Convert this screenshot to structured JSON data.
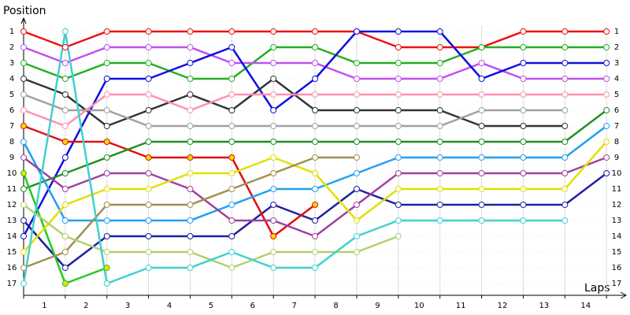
{
  "chart_data": {
    "type": "line",
    "y_label": "Position",
    "x_label": "Laps",
    "x": [
      0,
      1,
      2,
      3,
      4,
      5,
      6,
      7,
      8,
      9,
      10,
      11,
      12,
      13,
      14
    ],
    "xlim": [
      0,
      14.5
    ],
    "xticks": [
      {
        "value": 0.5,
        "label": "1"
      },
      {
        "value": 1.5,
        "label": "2"
      },
      {
        "value": 2.5,
        "label": "3"
      },
      {
        "value": 3.5,
        "label": "4"
      },
      {
        "value": 4.5,
        "label": "5"
      },
      {
        "value": 5.5,
        "label": "6"
      },
      {
        "value": 6.5,
        "label": "7"
      },
      {
        "value": 7.5,
        "label": "8"
      },
      {
        "value": 8.5,
        "label": "9"
      },
      {
        "value": 9.5,
        "label": "10"
      },
      {
        "value": 10.5,
        "label": "11"
      },
      {
        "value": 11.5,
        "label": "12"
      },
      {
        "value": 12.5,
        "label": "13"
      },
      {
        "value": 13.5,
        "label": "14"
      }
    ],
    "ylim": [
      17.75,
      0.25
    ],
    "yticks": [
      1,
      2,
      3,
      4,
      5,
      6,
      7,
      8,
      9,
      10,
      11,
      12,
      13,
      14,
      15,
      16,
      17
    ],
    "grid": true,
    "series": [
      {
        "color": "#ee1111",
        "marker_fill": "#ffffff",
        "values": [
          1,
          2,
          1,
          1,
          1,
          1,
          1,
          1,
          1,
          2,
          2,
          2,
          1,
          1,
          1
        ]
      },
      {
        "color": "#22b022",
        "marker_fill": "#ffffff",
        "values": [
          3,
          4,
          3,
          3,
          4,
          4,
          2,
          2,
          3,
          3,
          3,
          2,
          2,
          2,
          2
        ]
      },
      {
        "color": "#c050f0",
        "marker_fill": "#ffffff",
        "values": [
          2,
          3,
          2,
          2,
          2,
          3,
          3,
          3,
          4,
          4,
          4,
          3,
          4,
          4,
          4
        ]
      },
      {
        "color": "#1010e0",
        "marker_fill": "#ffffff",
        "values": [
          14,
          9,
          4,
          4,
          3,
          2,
          6,
          4,
          1,
          1,
          1,
          4,
          3,
          3,
          3
        ]
      },
      {
        "color": "#2020a0",
        "marker_fill": "#ffffff",
        "values": [
          13,
          16,
          14,
          14,
          14,
          14,
          12,
          13,
          11,
          12,
          12,
          12,
          12,
          12,
          10
        ]
      },
      {
        "color": "#333333",
        "marker_fill": "#ffffff",
        "values": [
          4,
          5,
          7,
          6,
          5,
          6,
          4,
          6,
          6,
          6,
          6,
          7,
          7,
          7,
          null
        ]
      },
      {
        "color": "#a0a0a0",
        "marker_fill": "#ffffff",
        "values": [
          5,
          6,
          6,
          7,
          7,
          7,
          7,
          7,
          7,
          7,
          7,
          6,
          6,
          6,
          null
        ]
      },
      {
        "color": "#ff90b0",
        "marker_fill": "#ffffff",
        "values": [
          6,
          7,
          5,
          5,
          6,
          5,
          5,
          5,
          5,
          5,
          5,
          5,
          5,
          5,
          5
        ]
      },
      {
        "color": "#e01010",
        "marker_fill": "#f0e000",
        "values": [
          7,
          8,
          8,
          9,
          9,
          9,
          14,
          12,
          null,
          null,
          null,
          null,
          null,
          null,
          null
        ]
      },
      {
        "color": "#209020",
        "marker_fill": "#ffffff",
        "values": [
          11,
          10,
          9,
          8,
          8,
          8,
          8,
          8,
          8,
          8,
          8,
          8,
          8,
          8,
          6
        ]
      },
      {
        "color": "#20a0f0",
        "marker_fill": "#ffffff",
        "values": [
          8,
          13,
          13,
          13,
          13,
          12,
          11,
          11,
          10,
          9,
          9,
          9,
          9,
          9,
          7
        ]
      },
      {
        "color": "#a040a0",
        "marker_fill": "#ffffff",
        "values": [
          9,
          11,
          10,
          10,
          11,
          13,
          13,
          14,
          12,
          10,
          10,
          10,
          10,
          10,
          9
        ]
      },
      {
        "color": "#20cc20",
        "marker_fill": "#f0e000",
        "values": [
          10,
          17,
          16,
          null,
          null,
          null,
          null,
          null,
          null,
          null,
          null,
          null,
          null,
          null,
          null
        ]
      },
      {
        "color": "#e0e000",
        "marker_fill": "#ffffff",
        "values": [
          15,
          12,
          11,
          11,
          10,
          10,
          9,
          10,
          13,
          11,
          11,
          11,
          11,
          11,
          8
        ]
      },
      {
        "color": "#a09050",
        "marker_fill": "#ffffff",
        "values": [
          16,
          15,
          12,
          12,
          12,
          11,
          10,
          9,
          9,
          null,
          null,
          null,
          null,
          null,
          null
        ]
      },
      {
        "color": "#b0d070",
        "marker_fill": "#ffffff",
        "values": [
          12,
          14,
          15,
          15,
          15,
          16,
          15,
          15,
          15,
          14,
          null,
          null,
          null,
          null,
          null
        ]
      },
      {
        "color": "#40d0d0",
        "marker_fill": "#ffffff",
        "values": [
          17,
          1,
          17,
          16,
          16,
          15,
          16,
          16,
          14,
          13,
          13,
          13,
          13,
          13,
          null
        ]
      }
    ]
  }
}
